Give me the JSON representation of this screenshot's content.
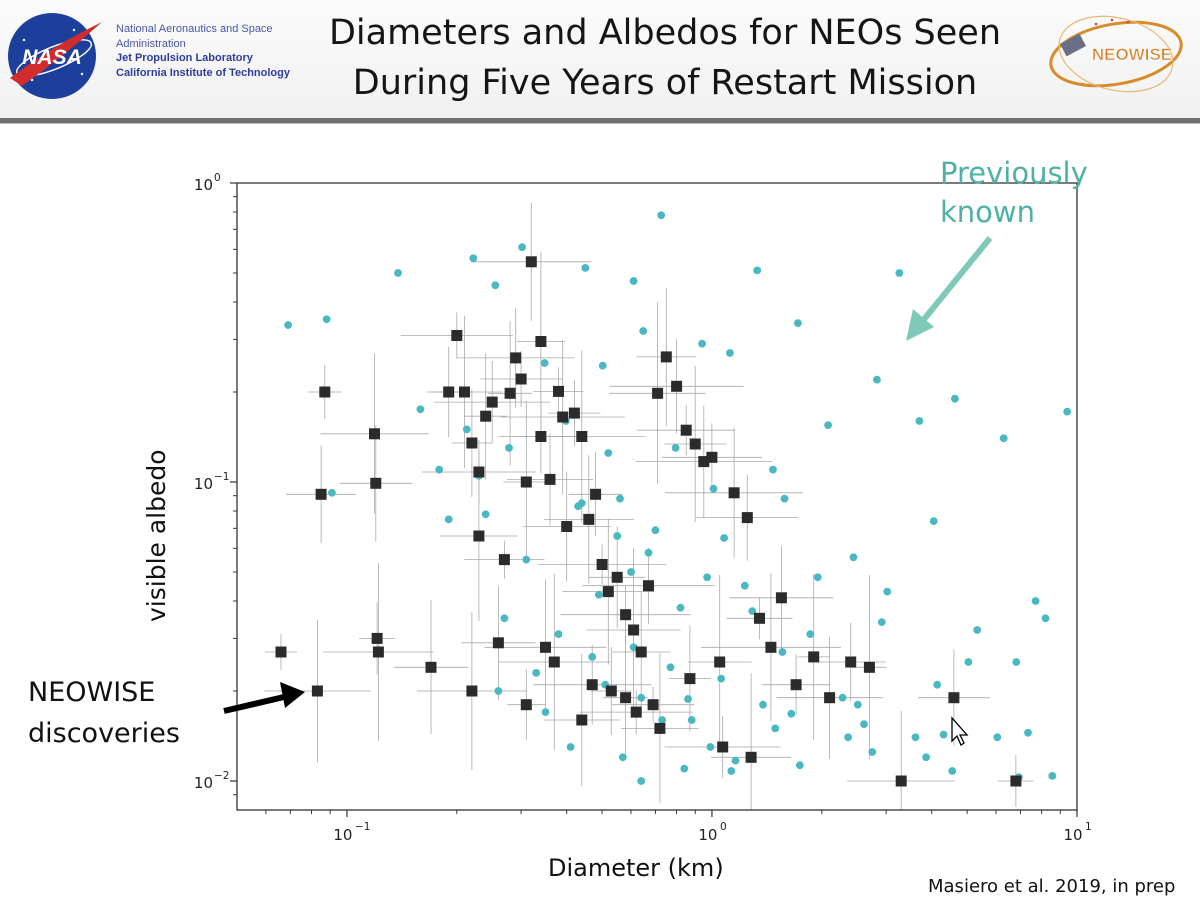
{
  "header": {
    "org_line1": "National Aeronautics and Space",
    "org_line2": "Administration",
    "org_line3": "Jet Propulsion Laboratory",
    "org_line4": "California Institute of Technology",
    "title_line1": "Diameters and Albedos for NEOs Seen",
    "title_line2": "During Five Years of Restart Mission",
    "nasa_logo_text": "NASA",
    "neowise_logo_text": "NEOWISE"
  },
  "colors": {
    "previously_known": "#4ab8c1",
    "neowise_discoveries": "#2b2b2b",
    "errorbar": "#a9a9a9",
    "arrow_known": "#7fc9b8",
    "arrow_discoveries": "#000000"
  },
  "chart_data": {
    "type": "scatter",
    "title": "",
    "xlabel": "Diameter (km)",
    "ylabel": "visible albedo",
    "xscale": "log",
    "yscale": "log",
    "xlim": [
      0.05,
      10
    ],
    "ylim": [
      0.008,
      1
    ],
    "xticks": [
      {
        "value": 0.1,
        "label": "10",
        "exp": "−1"
      },
      {
        "value": 1,
        "label": "10",
        "exp": "0"
      },
      {
        "value": 10,
        "label": "10",
        "exp": "1"
      }
    ],
    "yticks": [
      {
        "value": 0.01,
        "label": "10",
        "exp": "−2"
      },
      {
        "value": 0.1,
        "label": "10",
        "exp": "−1"
      },
      {
        "value": 1,
        "label": "10",
        "exp": "0"
      }
    ],
    "grid": false,
    "annotations": [
      {
        "text": [
          "Previously",
          "known"
        ]
      },
      {
        "text": [
          "NEOWISE",
          "discoveries"
        ]
      }
    ],
    "series": [
      {
        "marker": "circle",
        "color": "#4ab8c1",
        "x": [
          0.069,
          0.088,
          0.138,
          0.222,
          0.302,
          0.45,
          0.61,
          0.726,
          1.33,
          3.26,
          9.4,
          0.091,
          0.159,
          0.255,
          0.348,
          0.502,
          0.648,
          0.94,
          1.12,
          1.72,
          2.83,
          4.63,
          0.179,
          0.213,
          0.278,
          0.398,
          0.52,
          0.795,
          1.01,
          1.47,
          2.08,
          3.7,
          6.3,
          0.19,
          0.24,
          0.31,
          0.44,
          0.56,
          0.7,
          1.08,
          1.58,
          2.44,
          4.05,
          7.7,
          0.27,
          0.38,
          0.49,
          0.6,
          0.82,
          1.23,
          1.95,
          2.92,
          5.04,
          0.33,
          0.47,
          0.61,
          0.77,
          1.06,
          1.56,
          2.51,
          4.14,
          6.82,
          0.26,
          0.35,
          0.51,
          0.64,
          0.88,
          1.38,
          2.28,
          3.61,
          6.05,
          0.41,
          0.57,
          0.73,
          0.99,
          1.49,
          2.36,
          3.86,
          7.34,
          0.64,
          0.84,
          1.13,
          1.74,
          2.75,
          4.55,
          8.56,
          0.86,
          1.16,
          1.65,
          2.61,
          4.31,
          6.93,
          0.23,
          0.43,
          0.55,
          0.67,
          0.97,
          1.29,
          1.86,
          3.02,
          5.33,
          8.2
        ],
        "y": [
          0.335,
          0.35,
          0.5,
          0.56,
          0.61,
          0.52,
          0.47,
          0.78,
          0.51,
          0.5,
          0.172,
          0.092,
          0.175,
          0.455,
          0.25,
          0.245,
          0.32,
          0.29,
          0.27,
          0.34,
          0.22,
          0.19,
          0.11,
          0.15,
          0.13,
          0.16,
          0.125,
          0.13,
          0.095,
          0.11,
          0.155,
          0.16,
          0.14,
          0.075,
          0.078,
          0.055,
          0.085,
          0.088,
          0.069,
          0.065,
          0.088,
          0.056,
          0.074,
          0.04,
          0.035,
          0.031,
          0.042,
          0.05,
          0.038,
          0.045,
          0.048,
          0.034,
          0.025,
          0.023,
          0.026,
          0.028,
          0.024,
          0.022,
          0.027,
          0.018,
          0.021,
          0.025,
          0.02,
          0.017,
          0.021,
          0.019,
          0.016,
          0.018,
          0.019,
          0.014,
          0.014,
          0.013,
          0.012,
          0.016,
          0.013,
          0.015,
          0.014,
          0.012,
          0.0145,
          0.01,
          0.011,
          0.0108,
          0.0113,
          0.0125,
          0.0108,
          0.0104,
          0.0188,
          0.0117,
          0.0168,
          0.0155,
          0.0143,
          0.0103,
          0.105,
          0.083,
          0.066,
          0.058,
          0.048,
          0.037,
          0.031,
          0.043,
          0.032,
          0.035
        ]
      },
      {
        "marker": "square",
        "color": "#2b2b2b",
        "errorbars": true,
        "x": [
          0.066,
          0.083,
          0.085,
          0.087,
          0.119,
          0.12,
          0.121,
          0.122,
          0.17,
          0.19,
          0.2,
          0.21,
          0.22,
          0.23,
          0.23,
          0.24,
          0.25,
          0.27,
          0.28,
          0.29,
          0.3,
          0.31,
          0.32,
          0.34,
          0.34,
          0.35,
          0.36,
          0.38,
          0.39,
          0.4,
          0.42,
          0.44,
          0.46,
          0.48,
          0.5,
          0.52,
          0.55,
          0.58,
          0.61,
          0.64,
          0.67,
          0.71,
          0.75,
          0.8,
          0.85,
          0.9,
          0.95,
          1.0,
          1.05,
          1.15,
          1.25,
          1.35,
          1.45,
          1.55,
          1.7,
          1.9,
          2.1,
          2.4,
          2.7,
          3.3,
          4.6,
          6.8,
          0.22,
          0.26,
          0.31,
          0.37,
          0.44,
          0.53,
          0.62,
          0.72,
          0.87,
          1.07,
          1.28,
          0.58,
          0.47,
          0.69
        ],
        "y": [
          0.027,
          0.02,
          0.091,
          0.2,
          0.145,
          0.099,
          0.03,
          0.027,
          0.024,
          0.2,
          0.309,
          0.2,
          0.135,
          0.108,
          0.066,
          0.166,
          0.185,
          0.055,
          0.198,
          0.26,
          0.221,
          0.1,
          0.545,
          0.142,
          0.295,
          0.028,
          0.102,
          0.201,
          0.165,
          0.071,
          0.17,
          0.142,
          0.075,
          0.091,
          0.053,
          0.043,
          0.048,
          0.036,
          0.032,
          0.027,
          0.045,
          0.198,
          0.262,
          0.209,
          0.149,
          0.134,
          0.117,
          0.121,
          0.025,
          0.092,
          0.076,
          0.035,
          0.028,
          0.041,
          0.021,
          0.026,
          0.019,
          0.025,
          0.024,
          0.01,
          0.019,
          0.01,
          0.02,
          0.029,
          0.018,
          0.025,
          0.016,
          0.02,
          0.017,
          0.015,
          0.022,
          0.013,
          0.012,
          0.019,
          0.021,
          0.018
        ]
      }
    ]
  },
  "credit": "Masiero et al. 2019, in prep"
}
